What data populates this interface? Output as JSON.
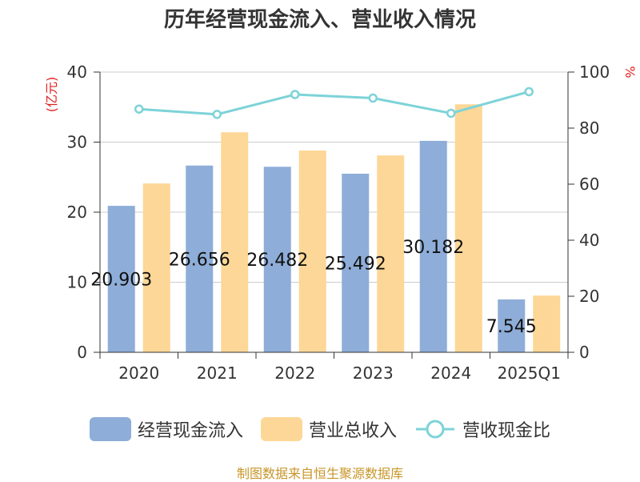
{
  "title": "历年经营现金流入、营业收入情况",
  "left_unit": "(亿元)",
  "right_unit": "%",
  "source": "制图数据来自恒生聚源数据库",
  "colors": {
    "cash_inflow": "#8eadd8",
    "revenue": "#fdd797",
    "ratio": "#7dd3d8",
    "axis": "#333333",
    "grid": "#cccccc",
    "unit": "#e02020"
  },
  "legend": [
    {
      "label": "经营现金流入",
      "kind": "bar",
      "color": "#8eadd8"
    },
    {
      "label": "营业总收入",
      "kind": "bar",
      "color": "#fdd797"
    },
    {
      "label": "营收现金比",
      "kind": "line",
      "color": "#7dd3d8"
    }
  ],
  "chart_data": {
    "type": "bar",
    "categories": [
      "2020",
      "2021",
      "2022",
      "2023",
      "2024",
      "2025Q1"
    ],
    "series": [
      {
        "name": "经营现金流入",
        "type": "bar",
        "axis": "left",
        "values": [
          20.903,
          26.656,
          26.482,
          25.492,
          30.182,
          7.545
        ],
        "labels": [
          "20.903",
          "26.656",
          "26.482",
          "25.492",
          "30.182",
          "7.545"
        ]
      },
      {
        "name": "营业总收入",
        "type": "bar",
        "axis": "left",
        "values": [
          24.1,
          31.4,
          28.8,
          28.1,
          35.4,
          8.1
        ]
      },
      {
        "name": "营收现金比",
        "type": "line",
        "axis": "right",
        "values": [
          86.8,
          84.9,
          92.0,
          90.7,
          85.3,
          93.0
        ]
      }
    ],
    "ylim_left": [
      0,
      40
    ],
    "yticks_left": [
      "0",
      "10",
      "20",
      "30",
      "40"
    ],
    "ylim_right": [
      0,
      100
    ],
    "yticks_right": [
      "0",
      "20",
      "40",
      "60",
      "80",
      "100"
    ],
    "grid": true,
    "legend_position": "bottom"
  }
}
